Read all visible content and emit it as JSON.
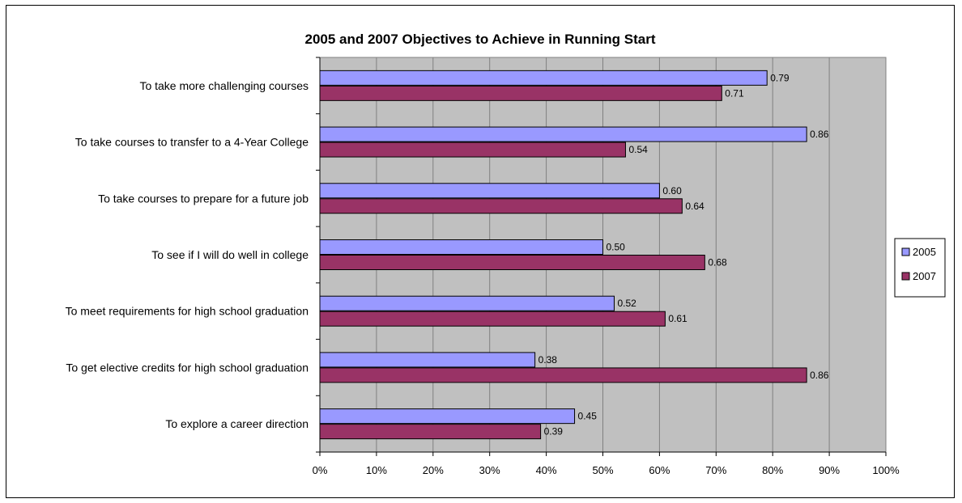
{
  "chart_data": {
    "type": "bar",
    "orientation": "horizontal",
    "title": "2005 and 2007 Objectives to Achieve in Running Start",
    "categories": [
      "To take more challenging courses",
      "To take courses to transfer to a 4-Year College",
      "To take courses to prepare for a future job",
      "To see if I will do well in college",
      "To meet requirements for high school graduation",
      "To get elective credits for high school graduation",
      "To explore a career direction"
    ],
    "series": [
      {
        "name": "2005",
        "values": [
          0.79,
          0.86,
          0.6,
          0.5,
          0.52,
          0.38,
          0.45
        ],
        "labels": [
          "0.79",
          "0.86",
          "0.60",
          "0.50",
          "0.52",
          "0.38",
          "0.45"
        ],
        "color": "#9999ff"
      },
      {
        "name": "2007",
        "values": [
          0.71,
          0.54,
          0.64,
          0.68,
          0.61,
          0.86,
          0.39
        ],
        "labels": [
          "0.71",
          "0.54",
          "0.64",
          "0.68",
          "0.61",
          "0.86",
          "0.39"
        ],
        "color": "#993366"
      }
    ],
    "xlim": [
      0,
      1
    ],
    "xticks": [
      0,
      0.1,
      0.2,
      0.3,
      0.4,
      0.5,
      0.6,
      0.7,
      0.8,
      0.9,
      1.0
    ],
    "xtick_labels": [
      "0%",
      "10%",
      "20%",
      "30%",
      "40%",
      "50%",
      "60%",
      "70%",
      "80%",
      "90%",
      "100%"
    ],
    "grid": "vertical",
    "plot_background": "#c0c0c0",
    "legend_position": "right"
  }
}
